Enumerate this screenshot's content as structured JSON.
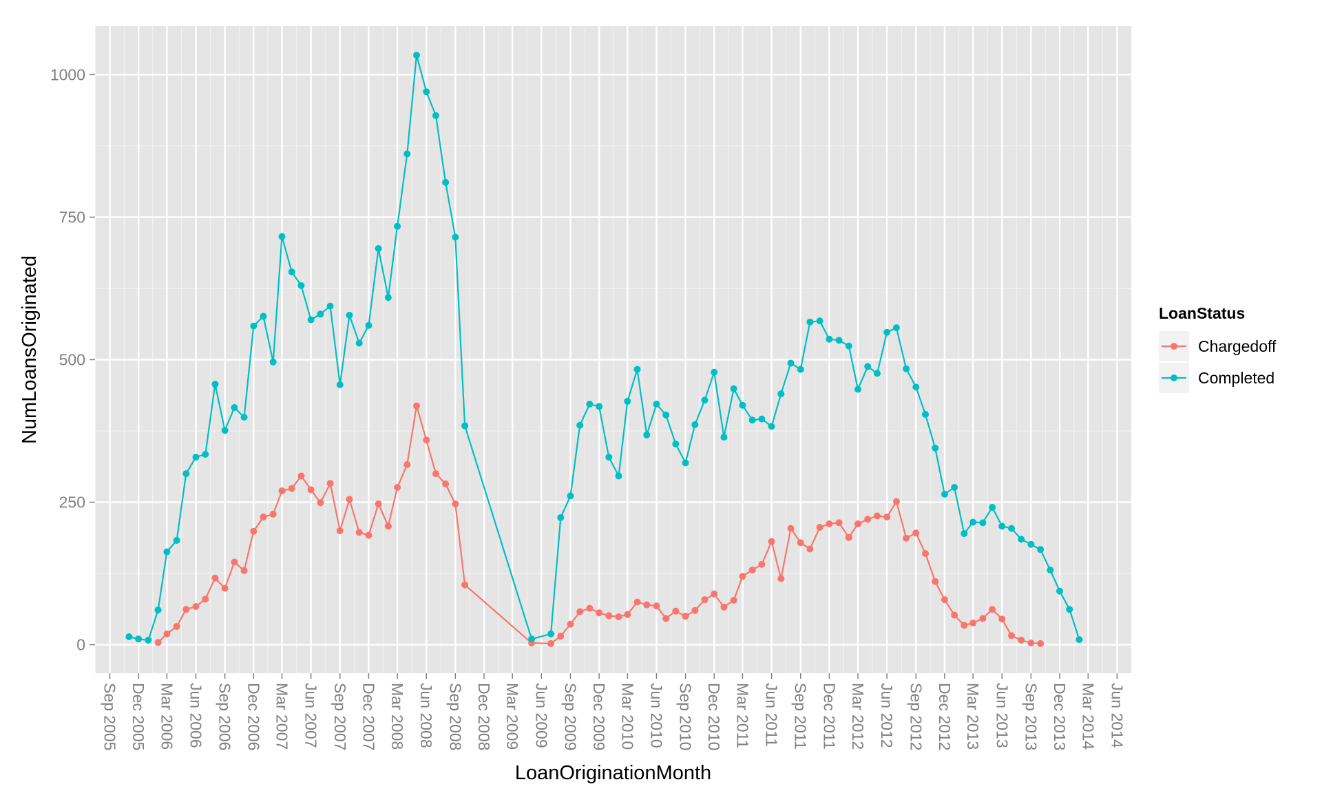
{
  "chart_data": {
    "type": "line",
    "xlabel": "LoanOriginationMonth",
    "ylabel": "NumLoansOriginated",
    "ylim": [
      -50,
      1085
    ],
    "xlim": [
      "2005-07-16",
      "2014-07-16"
    ],
    "y_ticks": [
      0,
      250,
      500,
      750,
      1000
    ],
    "y_tick_labels": [
      "0",
      "250",
      "500",
      "750",
      "1000"
    ],
    "x_ticks": [
      "2005-09-01",
      "2005-12-01",
      "2006-03-01",
      "2006-06-01",
      "2006-09-01",
      "2006-12-01",
      "2007-03-01",
      "2007-06-01",
      "2007-09-01",
      "2007-12-01",
      "2008-03-01",
      "2008-06-01",
      "2008-09-01",
      "2008-12-01",
      "2009-03-01",
      "2009-06-01",
      "2009-09-01",
      "2009-12-01",
      "2010-03-01",
      "2010-06-01",
      "2010-09-01",
      "2010-12-01",
      "2011-03-01",
      "2011-06-01",
      "2011-09-01",
      "2011-12-01",
      "2012-03-01",
      "2012-06-01",
      "2012-09-01",
      "2012-12-01",
      "2013-03-01",
      "2013-06-01",
      "2013-09-01",
      "2013-12-01",
      "2014-03-01",
      "2014-06-01"
    ],
    "x_tick_labels": [
      "Sep 2005",
      "Dec 2005",
      "Mar 2006",
      "Jun 2006",
      "Sep 2006",
      "Dec 2006",
      "Mar 2007",
      "Jun 2007",
      "Sep 2007",
      "Dec 2007",
      "Mar 2008",
      "Jun 2008",
      "Sep 2008",
      "Dec 2008",
      "Mar 2009",
      "Jun 2009",
      "Sep 2009",
      "Dec 2009",
      "Mar 2010",
      "Jun 2010",
      "Sep 2010",
      "Dec 2010",
      "Mar 2011",
      "Jun 2011",
      "Sep 2011",
      "Dec 2011",
      "Mar 2012",
      "Jun 2012",
      "Sep 2012",
      "Dec 2012",
      "Mar 2013",
      "Jun 2013",
      "Sep 2013",
      "Dec 2013",
      "Mar 2014",
      "Jun 2014"
    ],
    "grid": true,
    "legend": {
      "title": "LoanStatus",
      "position": "right"
    },
    "series": [
      {
        "name": "Chargedoff",
        "color": "#f8766d",
        "x": [
          "2006-02-01",
          "2006-03-01",
          "2006-04-01",
          "2006-05-01",
          "2006-06-01",
          "2006-07-01",
          "2006-08-01",
          "2006-09-01",
          "2006-10-01",
          "2006-11-01",
          "2006-12-01",
          "2007-01-01",
          "2007-02-01",
          "2007-03-01",
          "2007-04-01",
          "2007-05-01",
          "2007-06-01",
          "2007-07-01",
          "2007-08-01",
          "2007-09-01",
          "2007-10-01",
          "2007-11-01",
          "2007-12-01",
          "2008-01-01",
          "2008-02-01",
          "2008-03-01",
          "2008-04-01",
          "2008-05-01",
          "2008-06-01",
          "2008-07-01",
          "2008-08-01",
          "2008-09-01",
          "2008-10-01",
          "2009-05-01",
          "2009-07-01",
          "2009-08-01",
          "2009-09-01",
          "2009-10-01",
          "2009-11-01",
          "2009-12-01",
          "2010-01-01",
          "2010-02-01",
          "2010-03-01",
          "2010-04-01",
          "2010-05-01",
          "2010-06-01",
          "2010-07-01",
          "2010-08-01",
          "2010-09-01",
          "2010-10-01",
          "2010-11-01",
          "2010-12-01",
          "2011-01-01",
          "2011-02-01",
          "2011-03-01",
          "2011-04-01",
          "2011-05-01",
          "2011-06-01",
          "2011-07-01",
          "2011-08-01",
          "2011-09-01",
          "2011-10-01",
          "2011-11-01",
          "2011-12-01",
          "2012-01-01",
          "2012-02-01",
          "2012-03-01",
          "2012-04-01",
          "2012-05-01",
          "2012-06-01",
          "2012-07-01",
          "2012-08-01",
          "2012-09-01",
          "2012-10-01",
          "2012-11-01",
          "2012-12-01",
          "2013-01-01",
          "2013-02-01",
          "2013-03-01",
          "2013-04-01",
          "2013-05-01",
          "2013-06-01",
          "2013-07-01",
          "2013-08-01",
          "2013-09-01",
          "2013-10-01"
        ],
        "values": [
          4,
          19,
          32,
          62,
          67,
          80,
          117,
          99,
          145,
          130,
          199,
          224,
          229,
          270,
          274,
          296,
          272,
          249,
          283,
          200,
          255,
          197,
          192,
          247,
          208,
          276,
          316,
          419,
          359,
          300,
          282,
          247,
          105,
          3,
          2,
          15,
          36,
          58,
          64,
          56,
          51,
          49,
          53,
          75,
          70,
          68,
          46,
          59,
          50,
          60,
          79,
          89,
          66,
          78,
          120,
          131,
          141,
          181,
          116,
          204,
          179,
          168,
          206,
          212,
          214,
          188,
          212,
          220,
          226,
          224,
          251,
          187,
          196,
          160,
          111,
          79,
          52,
          34,
          38,
          46,
          62,
          45,
          16,
          8,
          3,
          2
        ]
      },
      {
        "name": "Completed",
        "color": "#00bfc4",
        "x": [
          "2005-11-01",
          "2005-12-01",
          "2006-01-01",
          "2006-02-01",
          "2006-03-01",
          "2006-04-01",
          "2006-05-01",
          "2006-06-01",
          "2006-07-01",
          "2006-08-01",
          "2006-09-01",
          "2006-10-01",
          "2006-11-01",
          "2006-12-01",
          "2007-01-01",
          "2007-02-01",
          "2007-03-01",
          "2007-04-01",
          "2007-05-01",
          "2007-06-01",
          "2007-07-01",
          "2007-08-01",
          "2007-09-01",
          "2007-10-01",
          "2007-11-01",
          "2007-12-01",
          "2008-01-01",
          "2008-02-01",
          "2008-03-01",
          "2008-04-01",
          "2008-05-01",
          "2008-06-01",
          "2008-07-01",
          "2008-08-01",
          "2008-09-01",
          "2008-10-01",
          "2009-05-01",
          "2009-07-01",
          "2009-08-01",
          "2009-09-01",
          "2009-10-01",
          "2009-11-01",
          "2009-12-01",
          "2010-01-01",
          "2010-02-01",
          "2010-03-01",
          "2010-04-01",
          "2010-05-01",
          "2010-06-01",
          "2010-07-01",
          "2010-08-01",
          "2010-09-01",
          "2010-10-01",
          "2010-11-01",
          "2010-12-01",
          "2011-01-01",
          "2011-02-01",
          "2011-03-01",
          "2011-04-01",
          "2011-05-01",
          "2011-06-01",
          "2011-07-01",
          "2011-08-01",
          "2011-09-01",
          "2011-10-01",
          "2011-11-01",
          "2011-12-01",
          "2012-01-01",
          "2012-02-01",
          "2012-03-01",
          "2012-04-01",
          "2012-05-01",
          "2012-06-01",
          "2012-07-01",
          "2012-08-01",
          "2012-09-01",
          "2012-10-01",
          "2012-11-01",
          "2012-12-01",
          "2013-01-01",
          "2013-02-01",
          "2013-03-01",
          "2013-04-01",
          "2013-05-01",
          "2013-06-01",
          "2013-07-01",
          "2013-08-01",
          "2013-09-01",
          "2013-10-01",
          "2013-11-01",
          "2013-12-01",
          "2014-01-01",
          "2014-02-01"
        ],
        "values": [
          14,
          10,
          8,
          61,
          163,
          183,
          300,
          329,
          334,
          457,
          376,
          416,
          399,
          559,
          576,
          496,
          716,
          654,
          630,
          570,
          580,
          594,
          456,
          578,
          529,
          560,
          695,
          609,
          734,
          861,
          1034,
          970,
          928,
          811,
          715,
          384,
          10,
          19,
          223,
          261,
          385,
          422,
          418,
          329,
          296,
          427,
          483,
          368,
          422,
          403,
          352,
          319,
          386,
          429,
          478,
          364,
          449,
          420,
          394,
          396,
          383,
          440,
          494,
          483,
          566,
          568,
          536,
          534,
          524,
          448,
          488,
          476,
          548,
          556,
          484,
          452,
          404,
          345,
          264,
          276,
          195,
          215,
          214,
          241,
          208,
          204,
          185,
          176,
          167,
          131,
          94,
          62,
          9
        ]
      }
    ]
  }
}
